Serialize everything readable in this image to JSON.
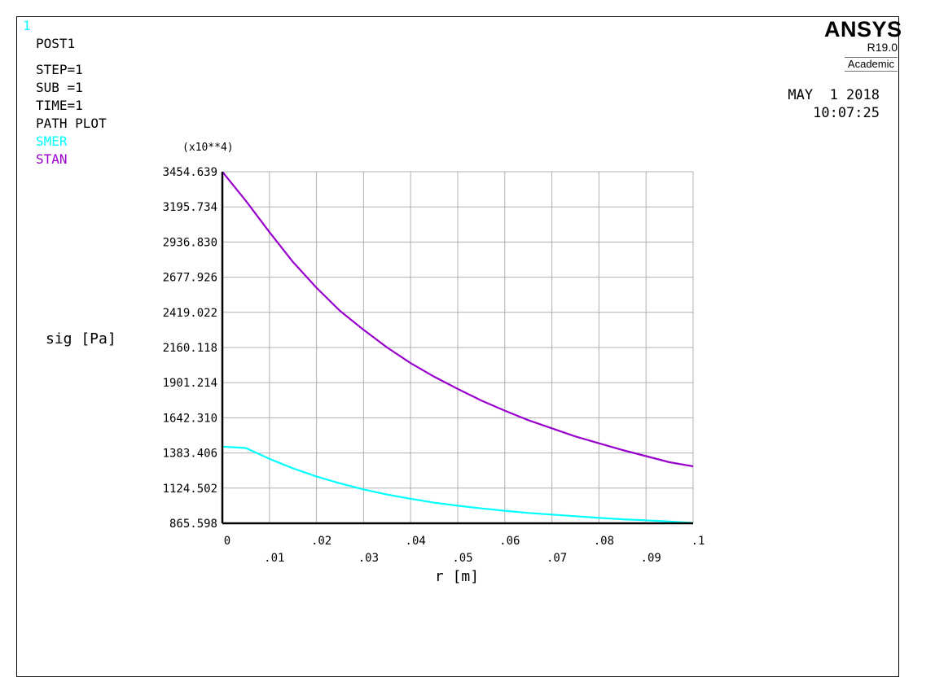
{
  "window_number": "1",
  "info": {
    "module": "POST1",
    "step": "STEP=1",
    "sub": "SUB =1",
    "time": "TIME=1",
    "plot_type": "PATH PLOT"
  },
  "logo": {
    "name": "ANSYS",
    "version": "R19.0",
    "edition": "Academic"
  },
  "date": "MAY  1 2018",
  "clock": "10:07:25",
  "colors": {
    "smer": "#00ffff",
    "stan": "#9900cc",
    "grid": "#b0b0b0",
    "axis": "#000000"
  },
  "chart_data": {
    "type": "line",
    "multiplier": "(x10**4)",
    "xlabel": "r [m]",
    "ylabel": "sig [Pa]",
    "xlim": [
      0,
      0.1
    ],
    "ylim": [
      865.598,
      3454.639
    ],
    "x_ticks_row1": [
      {
        "value": 0,
        "label": "0"
      },
      {
        "value": 0.02,
        "label": ".02"
      },
      {
        "value": 0.04,
        "label": ".04"
      },
      {
        "value": 0.06,
        "label": ".06"
      },
      {
        "value": 0.08,
        "label": ".08"
      },
      {
        "value": 0.1,
        "label": ".1"
      }
    ],
    "x_ticks_row2": [
      {
        "value": 0.01,
        "label": ".01"
      },
      {
        "value": 0.03,
        "label": ".03"
      },
      {
        "value": 0.05,
        "label": ".05"
      },
      {
        "value": 0.07,
        "label": ".07"
      },
      {
        "value": 0.09,
        "label": ".09"
      }
    ],
    "y_ticks": [
      {
        "value": 865.598,
        "label": "865.598"
      },
      {
        "value": 1124.502,
        "label": "1124.502"
      },
      {
        "value": 1383.406,
        "label": "1383.406"
      },
      {
        "value": 1642.31,
        "label": "1642.310"
      },
      {
        "value": 1901.214,
        "label": "1901.214"
      },
      {
        "value": 2160.118,
        "label": "2160.118"
      },
      {
        "value": 2419.022,
        "label": "2419.022"
      },
      {
        "value": 2677.926,
        "label": "2677.926"
      },
      {
        "value": 2936.83,
        "label": "2936.830"
      },
      {
        "value": 3195.734,
        "label": "3195.734"
      },
      {
        "value": 3454.639,
        "label": "3454.639"
      }
    ],
    "grid": true,
    "series": [
      {
        "name": "SMER",
        "color_key": "smer",
        "x": [
          0,
          0.005,
          0.01,
          0.015,
          0.02,
          0.025,
          0.03,
          0.035,
          0.04,
          0.045,
          0.05,
          0.055,
          0.06,
          0.065,
          0.07,
          0.075,
          0.08,
          0.085,
          0.09,
          0.095,
          0.1
        ],
        "y": [
          1430,
          1420,
          1340,
          1270,
          1210,
          1160,
          1115,
          1077,
          1046,
          1017,
          995,
          975,
          958,
          942,
          930,
          918,
          905,
          895,
          888,
          878,
          868
        ]
      },
      {
        "name": "STAN",
        "color_key": "stan",
        "x": [
          0,
          0.005,
          0.01,
          0.015,
          0.02,
          0.025,
          0.03,
          0.035,
          0.04,
          0.045,
          0.05,
          0.055,
          0.06,
          0.065,
          0.07,
          0.075,
          0.08,
          0.085,
          0.09,
          0.095,
          0.1
        ],
        "y": [
          3454,
          3240,
          3010,
          2790,
          2600,
          2430,
          2290,
          2160,
          2045,
          1945,
          1855,
          1770,
          1695,
          1625,
          1565,
          1505,
          1455,
          1405,
          1360,
          1315,
          1285
        ]
      }
    ]
  }
}
